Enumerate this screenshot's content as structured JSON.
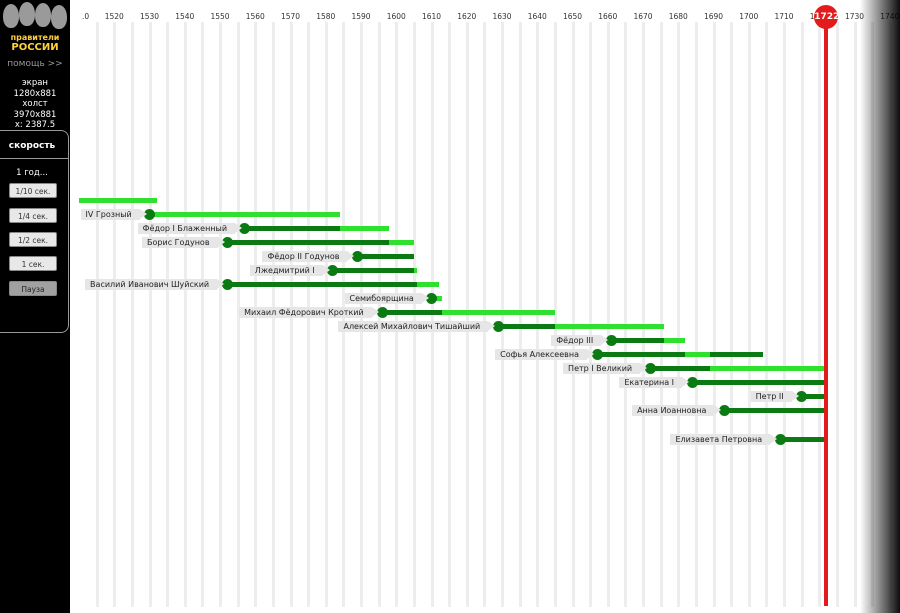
{
  "app": {
    "logo_top": "правители",
    "logo_bottom": "РОССИИ",
    "help": "помощь >>"
  },
  "info": {
    "screen_label": "экран",
    "screen_value": "1280x881",
    "canvas_label": "холст",
    "canvas_value": "3970x881",
    "x_readout": "x: 2387.5"
  },
  "speed": {
    "title": "скорость",
    "current": "1 год...",
    "buttons": [
      "1/10 сек.",
      "1/4 сек.",
      "1/2 сек.",
      "1 сек.",
      "Пауза"
    ]
  },
  "timeline": {
    "tick_labels": [
      ".0",
      "1520",
      "1530",
      "1540",
      "1550",
      "1560",
      "1570",
      "1580",
      "1590",
      "1600",
      "1610",
      "1620",
      "1630",
      "1640",
      "1650",
      "1660",
      "1670",
      "1680",
      "1690",
      "1700",
      "1710",
      "1720",
      "1730",
      "1740"
    ],
    "current_year": "1722",
    "colors": {
      "light": "#2fe02f",
      "dark": "#0c7a12",
      "marker": "#e21c1c"
    },
    "rulers": [
      {
        "name": "",
        "birth": 1510,
        "start": 1510,
        "end": 1532
      },
      {
        "name": "IV Грозный",
        "birth": 1530,
        "start": 1530,
        "end": 1584
      },
      {
        "name": "Фёдор I Блаженный",
        "birth": 1557,
        "start": 1584,
        "end": 1598
      },
      {
        "name": "Борис Годунов",
        "birth": 1552,
        "start": 1598,
        "end": 1605
      },
      {
        "name": "Фёдор II Годунов",
        "birth": 1589,
        "start": 1605,
        "end": 1605
      },
      {
        "name": "Лжедмитрий I",
        "birth": 1582,
        "start": 1605,
        "end": 1606
      },
      {
        "name": "Василий Иванович Шуйский",
        "birth": 1552,
        "start": 1606,
        "end": 1612
      },
      {
        "name": "Семибоярщина",
        "birth": 1610,
        "start": 1610,
        "end": 1613
      },
      {
        "name": "Михаил Фёдорович Кроткий",
        "birth": 1596,
        "start": 1613,
        "end": 1645
      },
      {
        "name": "Алексей Михайлович Тишайший",
        "birth": 1629,
        "start": 1645,
        "end": 1676
      },
      {
        "name": "Фёдор III",
        "birth": 1661,
        "start": 1676,
        "end": 1682
      },
      {
        "name": "Софья Алексеевна",
        "birth": 1657,
        "start": 1682,
        "end": 1689,
        "death": 1704
      },
      {
        "name": "Петр I Великий",
        "birth": 1672,
        "start": 1689,
        "end": 1722
      },
      {
        "name": "Екатерина I",
        "birth": 1684,
        "start": 1722,
        "end": 1722
      },
      {
        "name": "Петр II",
        "birth": 1715,
        "start": 1722,
        "end": 1722
      },
      {
        "name": "Анна Иоанновна",
        "birth": 1693,
        "start": 1722,
        "end": 1722
      },
      {
        "name": "Елизавета Петровна",
        "birth": 1709,
        "start": 1722,
        "end": 1722
      }
    ]
  }
}
